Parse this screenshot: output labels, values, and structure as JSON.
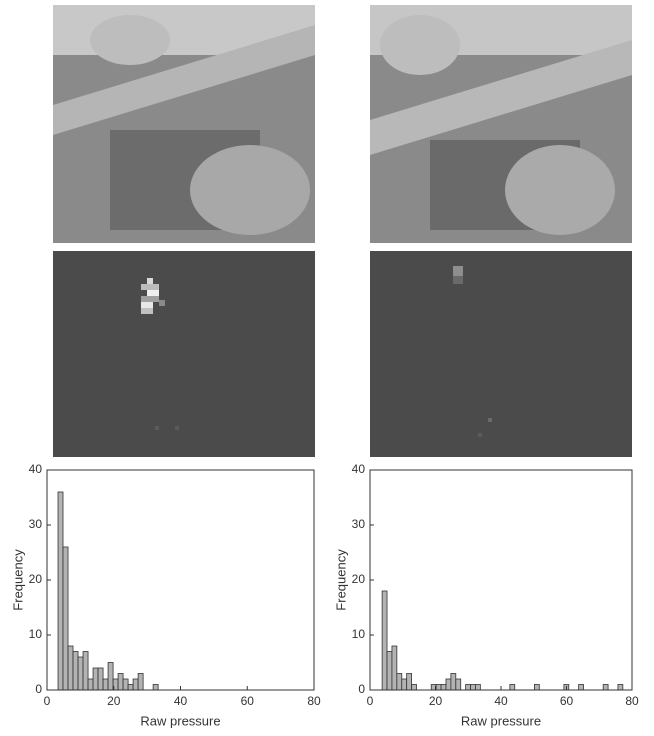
{
  "chart_data": [
    {
      "type": "histogram",
      "xlabel": "Raw pressure",
      "ylabel": "Frequency",
      "color": "#b3b3b3",
      "bins": [
        3.3,
        4.8,
        6.3,
        7.8,
        9.3,
        10.8,
        12.3,
        13.8,
        15.3,
        16.8,
        18.3,
        19.8,
        21.3,
        22.8,
        24.3,
        25.8,
        27.3,
        28.8,
        30.3,
        31.8,
        33.3
      ],
      "values": [
        36,
        26,
        8,
        7,
        6,
        7,
        2,
        4,
        4,
        2,
        5,
        2,
        3,
        2,
        1,
        2,
        3,
        0,
        0,
        1
      ],
      "xlim": [
        0,
        80
      ],
      "ylim": [
        0,
        40
      ],
      "xticks": [
        0,
        20,
        40,
        60,
        80
      ],
      "yticks": [
        0,
        10,
        20,
        30,
        40
      ]
    },
    {
      "type": "histogram",
      "xlabel": "Raw pressure",
      "ylabel": "Frequency",
      "color": "#b3b3b3",
      "bins": [
        3.7,
        5.2,
        6.7,
        8.2,
        9.7,
        11.2,
        12.7,
        14.2,
        15.7,
        17.2,
        18.7,
        20.2,
        21.7,
        23.2,
        24.7,
        26.2,
        27.7,
        29.2,
        30.7,
        32.2,
        33.7,
        35.2,
        36.7,
        38.2,
        39.7,
        41.2,
        42.7,
        44.2,
        45.7,
        47.2,
        48.7,
        50.2,
        51.7,
        53.2,
        54.7,
        56.2,
        57.7,
        59.2,
        60.7,
        62.2,
        63.7,
        65.2,
        66.7,
        68.2,
        69.7,
        71.2,
        72.7,
        74.2,
        75.7,
        77.2
      ],
      "values": [
        18,
        7,
        8,
        3,
        2,
        3,
        1,
        0,
        0,
        0,
        1,
        1,
        1,
        2,
        3,
        2,
        0,
        1,
        1,
        1,
        0,
        0,
        0,
        0,
        0,
        0,
        1,
        0,
        0,
        0,
        0,
        1,
        0,
        0,
        0,
        0,
        0,
        1,
        0,
        0,
        1,
        0,
        0,
        0,
        0,
        1,
        0,
        0,
        1
      ],
      "xlim": [
        0,
        80
      ],
      "ylim": [
        0,
        40
      ],
      "xticks": [
        0,
        20,
        40,
        60,
        80
      ],
      "yticks": [
        0,
        10,
        20,
        30,
        40
      ]
    }
  ]
}
